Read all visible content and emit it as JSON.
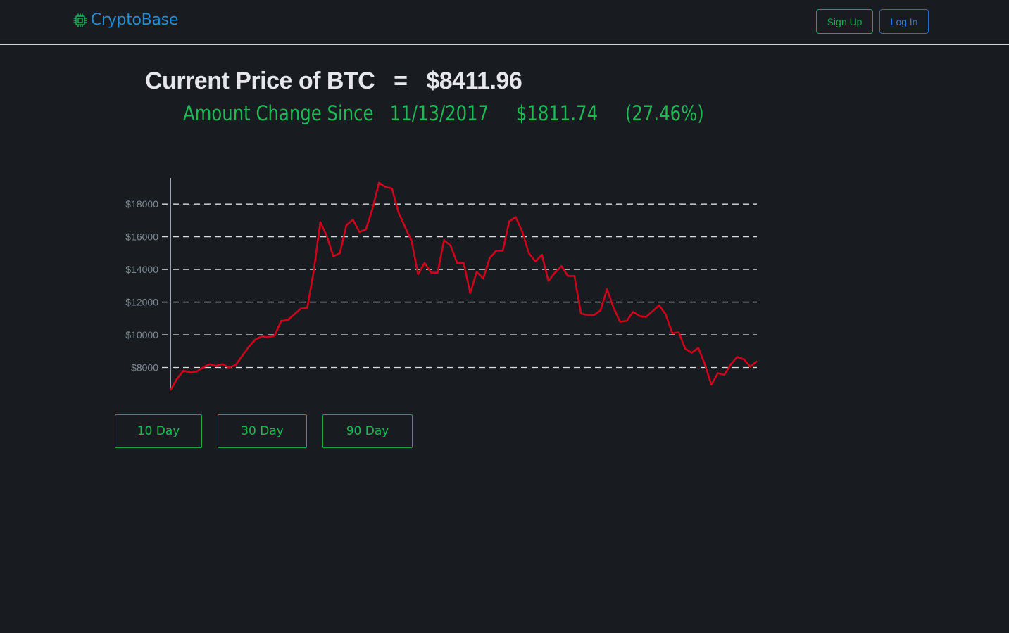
{
  "navbar": {
    "brand": "CryptoBase",
    "brand_icon": "chip-icon",
    "signup_label": "Sign Up",
    "login_label": "Log In"
  },
  "headline": {
    "prefix": "Current Price of BTC",
    "equals": "=",
    "price": "$8411.96"
  },
  "change": {
    "label": "Amount Change Since",
    "since_date": "11/13/2017",
    "amount": "$1811.74",
    "percent": "(27.46%)"
  },
  "range_buttons": [
    "10 Day",
    "30 Day",
    "90 Day"
  ],
  "colors": {
    "background": "#181b1f",
    "brand": "#1f8ed6",
    "positive": "#1db954",
    "line": "#d0021b",
    "login": "#2b7bf0"
  },
  "chart_data": {
    "type": "line",
    "x_label": "",
    "y_label": "",
    "ylim": [
      6600,
      19600
    ],
    "yticks": [
      8000,
      10000,
      12000,
      14000,
      16000,
      18000
    ],
    "ytick_labels": [
      "$8000",
      "$10000",
      "$12000",
      "$14000",
      "$16000",
      "$18000"
    ],
    "grid": "dashed-horizontal",
    "series": [
      {
        "values": [
          6600,
          7300,
          7800,
          7700,
          7750,
          8000,
          8200,
          8100,
          8200,
          8000,
          8150,
          8700,
          9250,
          9700,
          9900,
          9850,
          9950,
          10850,
          10900,
          11250,
          11600,
          11650,
          13900,
          16900,
          16050,
          14800,
          15000,
          16700,
          17050,
          16300,
          16450,
          17700,
          19300,
          19050,
          18950,
          17500,
          16600,
          15750,
          13700,
          14400,
          13800,
          13800,
          15800,
          15450,
          14400,
          14400,
          12550,
          13850,
          13450,
          14700,
          15150,
          15150,
          16950,
          17200,
          16300,
          15000,
          14500,
          14900,
          13300,
          13800,
          14200,
          13600,
          13600,
          11300,
          11200,
          11200,
          11500,
          12800,
          11650,
          10800,
          10850,
          11400,
          11150,
          11100,
          11450,
          11800,
          11250,
          10100,
          10150,
          9150,
          8900,
          9200,
          8200,
          6950,
          7650,
          7550,
          8200,
          8650,
          8500,
          8050,
          8400
        ]
      }
    ]
  }
}
